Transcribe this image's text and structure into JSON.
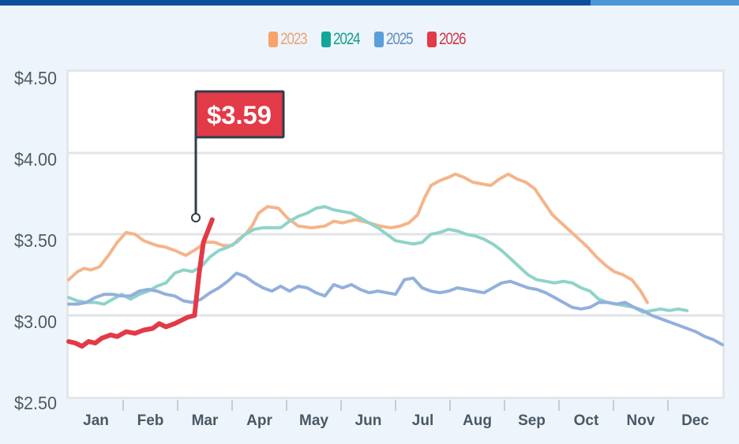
{
  "header": {
    "bar_colors": [
      "#0b4f9c",
      "#4d97d6"
    ]
  },
  "legend": [
    {
      "label": "2023",
      "color": "#f7a46b",
      "text_color": "#e8a477"
    },
    {
      "label": "2024",
      "color": "#12a79b",
      "text_color": "#179c91"
    },
    {
      "label": "2025",
      "color": "#5a9fd8",
      "text_color": "#5f8fc0"
    },
    {
      "label": "2026",
      "color": "#e23a47",
      "text_color": "#c93a48"
    }
  ],
  "callout": {
    "label": "$3.59",
    "value": 3.59,
    "series": "2026",
    "bg_color": "#e23a47",
    "border_color": "#2f3d4a"
  },
  "chart_data": {
    "type": "line",
    "title": "",
    "xlabel": "",
    "ylabel": "",
    "categories": [
      "Jan",
      "Feb",
      "Mar",
      "Apr",
      "May",
      "Jun",
      "Jul",
      "Aug",
      "Sep",
      "Oct",
      "Nov",
      "Dec"
    ],
    "y_ticks": [
      "$4.50",
      "$4.00",
      "$3.50",
      "$3.00",
      "$2.50"
    ],
    "ylim": [
      2.5,
      4.5
    ],
    "grid": true,
    "legend_position": "top",
    "x_unit": "fraction of year (0 = Jan 1, 12 = Dec 31), in months",
    "series": [
      {
        "name": "2023",
        "color": "#f5b48a",
        "points": [
          [
            0,
            3.22
          ],
          [
            0.2,
            3.27
          ],
          [
            0.35,
            3.29
          ],
          [
            0.5,
            3.28
          ],
          [
            0.7,
            3.3
          ],
          [
            0.9,
            3.37
          ],
          [
            1.1,
            3.45
          ],
          [
            1.3,
            3.51
          ],
          [
            1.5,
            3.5
          ],
          [
            1.7,
            3.46
          ],
          [
            2.0,
            3.43
          ],
          [
            2.2,
            3.42
          ],
          [
            2.4,
            3.4
          ],
          [
            2.65,
            3.37
          ],
          [
            2.9,
            3.41
          ],
          [
            3.1,
            3.45
          ],
          [
            3.3,
            3.45
          ],
          [
            3.5,
            3.43
          ],
          [
            3.7,
            3.43
          ],
          [
            3.85,
            3.47
          ],
          [
            4.0,
            3.5
          ],
          [
            4.15,
            3.55
          ],
          [
            4.3,
            3.63
          ],
          [
            4.5,
            3.67
          ],
          [
            4.75,
            3.66
          ],
          [
            4.95,
            3.6
          ],
          [
            5.2,
            3.55
          ],
          [
            5.5,
            3.54
          ],
          [
            5.8,
            3.55
          ],
          [
            6.0,
            3.58
          ],
          [
            6.2,
            3.57
          ],
          [
            6.5,
            3.59
          ],
          [
            6.8,
            3.57
          ],
          [
            7.05,
            3.55
          ],
          [
            7.3,
            3.54
          ],
          [
            7.5,
            3.55
          ],
          [
            7.7,
            3.57
          ],
          [
            7.9,
            3.62
          ],
          [
            8.05,
            3.72
          ],
          [
            8.2,
            3.8
          ],
          [
            8.4,
            3.83
          ],
          [
            8.6,
            3.85
          ],
          [
            8.75,
            3.87
          ],
          [
            8.95,
            3.85
          ],
          [
            9.15,
            3.82
          ],
          [
            9.35,
            3.81
          ],
          [
            9.55,
            3.8
          ],
          [
            9.75,
            3.84
          ],
          [
            9.95,
            3.87
          ],
          [
            10.15,
            3.84
          ],
          [
            10.35,
            3.82
          ],
          [
            10.55,
            3.78
          ],
          [
            10.75,
            3.7
          ],
          [
            10.95,
            3.62
          ],
          [
            11.15,
            3.57
          ],
          [
            11.35,
            3.52
          ],
          [
            11.55,
            3.47
          ],
          [
            11.75,
            3.42
          ],
          [
            11.95,
            3.36
          ],
          [
            12.15,
            3.31
          ],
          [
            12.35,
            3.27
          ],
          [
            12.55,
            3.25
          ],
          [
            12.75,
            3.22
          ],
          [
            12.95,
            3.15
          ],
          [
            13.1,
            3.08
          ]
        ]
      },
      {
        "name": "2024",
        "color": "#8fd3c9",
        "points": [
          [
            0,
            3.11
          ],
          [
            0.2,
            3.09
          ],
          [
            0.4,
            3.08
          ],
          [
            0.6,
            3.08
          ],
          [
            0.8,
            3.07
          ],
          [
            1.0,
            3.1
          ],
          [
            1.2,
            3.13
          ],
          [
            1.4,
            3.1
          ],
          [
            1.6,
            3.13
          ],
          [
            1.8,
            3.15
          ],
          [
            2.0,
            3.18
          ],
          [
            2.2,
            3.2
          ],
          [
            2.4,
            3.26
          ],
          [
            2.6,
            3.28
          ],
          [
            2.8,
            3.27
          ],
          [
            3.0,
            3.3
          ],
          [
            3.2,
            3.36
          ],
          [
            3.4,
            3.4
          ],
          [
            3.6,
            3.42
          ],
          [
            3.8,
            3.45
          ],
          [
            4.0,
            3.5
          ],
          [
            4.2,
            3.53
          ],
          [
            4.4,
            3.54
          ],
          [
            4.6,
            3.54
          ],
          [
            4.8,
            3.54
          ],
          [
            5.0,
            3.58
          ],
          [
            5.2,
            3.61
          ],
          [
            5.4,
            3.63
          ],
          [
            5.6,
            3.66
          ],
          [
            5.8,
            3.67
          ],
          [
            6.0,
            3.65
          ],
          [
            6.2,
            3.64
          ],
          [
            6.4,
            3.63
          ],
          [
            6.6,
            3.6
          ],
          [
            6.8,
            3.57
          ],
          [
            7.0,
            3.54
          ],
          [
            7.2,
            3.5
          ],
          [
            7.4,
            3.46
          ],
          [
            7.6,
            3.45
          ],
          [
            7.8,
            3.44
          ],
          [
            8.0,
            3.45
          ],
          [
            8.2,
            3.5
          ],
          [
            8.4,
            3.51
          ],
          [
            8.6,
            3.53
          ],
          [
            8.8,
            3.52
          ],
          [
            9.0,
            3.5
          ],
          [
            9.2,
            3.49
          ],
          [
            9.4,
            3.47
          ],
          [
            9.6,
            3.44
          ],
          [
            9.8,
            3.4
          ],
          [
            10.0,
            3.35
          ],
          [
            10.2,
            3.3
          ],
          [
            10.4,
            3.25
          ],
          [
            10.6,
            3.22
          ],
          [
            10.8,
            3.21
          ],
          [
            11.0,
            3.2
          ],
          [
            11.2,
            3.21
          ],
          [
            11.4,
            3.2
          ],
          [
            11.6,
            3.17
          ],
          [
            11.8,
            3.15
          ],
          [
            12.0,
            3.1
          ],
          [
            12.2,
            3.08
          ],
          [
            12.4,
            3.07
          ],
          [
            12.6,
            3.06
          ],
          [
            12.8,
            3.05
          ],
          [
            13.0,
            3.02
          ],
          [
            13.2,
            3.03
          ],
          [
            13.4,
            3.04
          ],
          [
            13.6,
            3.03
          ],
          [
            13.8,
            3.04
          ],
          [
            14.0,
            3.03
          ]
        ]
      },
      {
        "name": "2025",
        "color": "#93b0dc",
        "points": [
          [
            0,
            3.07
          ],
          [
            0.2,
            3.07
          ],
          [
            0.4,
            3.08
          ],
          [
            0.6,
            3.11
          ],
          [
            0.8,
            3.13
          ],
          [
            1.0,
            3.13
          ],
          [
            1.2,
            3.12
          ],
          [
            1.4,
            3.12
          ],
          [
            1.6,
            3.15
          ],
          [
            1.8,
            3.16
          ],
          [
            2.0,
            3.15
          ],
          [
            2.2,
            3.13
          ],
          [
            2.4,
            3.12
          ],
          [
            2.6,
            3.09
          ],
          [
            2.8,
            3.08
          ],
          [
            3.0,
            3.1
          ],
          [
            3.2,
            3.14
          ],
          [
            3.4,
            3.17
          ],
          [
            3.6,
            3.21
          ],
          [
            3.8,
            3.26
          ],
          [
            4.0,
            3.24
          ],
          [
            4.2,
            3.2
          ],
          [
            4.4,
            3.17
          ],
          [
            4.6,
            3.15
          ],
          [
            4.8,
            3.18
          ],
          [
            5.0,
            3.15
          ],
          [
            5.2,
            3.18
          ],
          [
            5.4,
            3.17
          ],
          [
            5.6,
            3.14
          ],
          [
            5.8,
            3.12
          ],
          [
            6.0,
            3.19
          ],
          [
            6.2,
            3.17
          ],
          [
            6.4,
            3.19
          ],
          [
            6.6,
            3.16
          ],
          [
            6.8,
            3.14
          ],
          [
            7.0,
            3.15
          ],
          [
            7.2,
            3.14
          ],
          [
            7.4,
            3.13
          ],
          [
            7.6,
            3.22
          ],
          [
            7.8,
            3.23
          ],
          [
            8.0,
            3.17
          ],
          [
            8.2,
            3.15
          ],
          [
            8.4,
            3.14
          ],
          [
            8.6,
            3.15
          ],
          [
            8.8,
            3.17
          ],
          [
            9.0,
            3.16
          ],
          [
            9.2,
            3.15
          ],
          [
            9.4,
            3.14
          ],
          [
            9.6,
            3.17
          ],
          [
            9.8,
            3.2
          ],
          [
            10.0,
            3.21
          ],
          [
            10.2,
            3.19
          ],
          [
            10.4,
            3.17
          ],
          [
            10.6,
            3.16
          ],
          [
            10.8,
            3.14
          ],
          [
            11.0,
            3.11
          ],
          [
            11.2,
            3.08
          ],
          [
            11.4,
            3.05
          ],
          [
            11.6,
            3.04
          ],
          [
            11.8,
            3.05
          ],
          [
            12.0,
            3.08
          ],
          [
            12.2,
            3.08
          ],
          [
            12.4,
            3.07
          ],
          [
            12.6,
            3.08
          ],
          [
            12.8,
            3.05
          ],
          [
            13.0,
            3.03
          ],
          [
            13.2,
            3.0
          ],
          [
            13.4,
            2.98
          ],
          [
            13.6,
            2.96
          ],
          [
            13.8,
            2.94
          ],
          [
            14.0,
            2.92
          ],
          [
            14.2,
            2.9
          ],
          [
            14.4,
            2.87
          ],
          [
            14.6,
            2.85
          ],
          [
            14.8,
            2.82
          ]
        ]
      },
      {
        "name": "2026",
        "color": "#e23a47",
        "points": [
          [
            0,
            2.84
          ],
          [
            0.15,
            2.83
          ],
          [
            0.3,
            2.81
          ],
          [
            0.45,
            2.84
          ],
          [
            0.6,
            2.83
          ],
          [
            0.75,
            2.86
          ],
          [
            0.95,
            2.88
          ],
          [
            1.1,
            2.87
          ],
          [
            1.3,
            2.9
          ],
          [
            1.5,
            2.89
          ],
          [
            1.7,
            2.91
          ],
          [
            1.9,
            2.92
          ],
          [
            2.05,
            2.95
          ],
          [
            2.2,
            2.93
          ],
          [
            2.4,
            2.95
          ],
          [
            2.55,
            2.97
          ],
          [
            2.7,
            2.99
          ],
          [
            2.85,
            3.0
          ],
          [
            2.95,
            3.25
          ],
          [
            3.05,
            3.45
          ],
          [
            3.15,
            3.52
          ],
          [
            3.25,
            3.59
          ]
        ]
      }
    ]
  }
}
